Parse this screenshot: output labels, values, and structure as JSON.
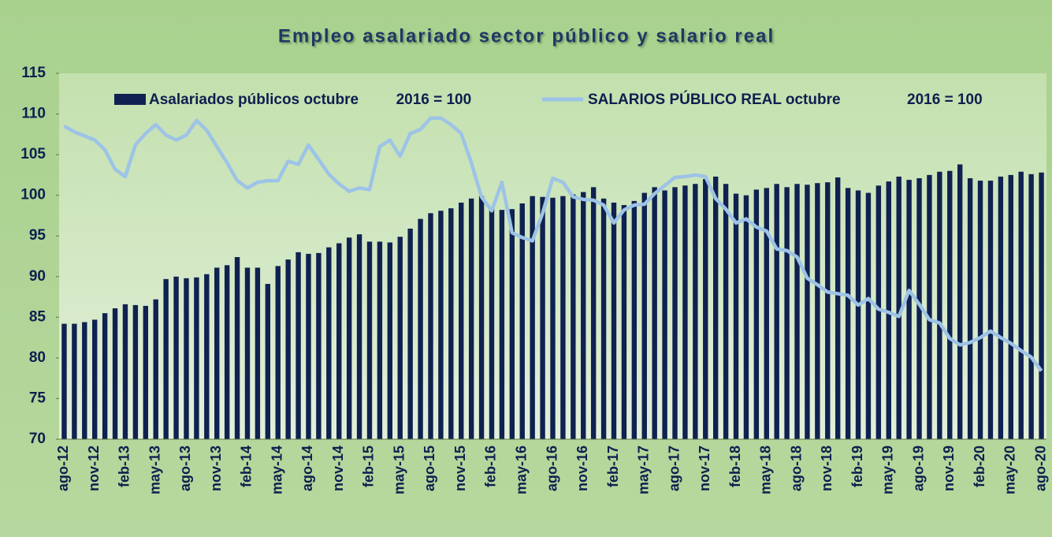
{
  "chart_data": {
    "type": "bar",
    "title": "Empleo asalariado sector público y salario real",
    "categories": [
      "ago-12",
      null,
      null,
      "nov-12",
      null,
      null,
      "feb-13",
      null,
      null,
      "may-13",
      null,
      null,
      "ago-13",
      null,
      null,
      "nov-13",
      null,
      null,
      "feb-14",
      null,
      null,
      "may-14",
      null,
      null,
      "ago-14",
      null,
      null,
      "nov-14",
      null,
      null,
      "feb-15",
      null,
      null,
      "may-15",
      null,
      null,
      "ago-15",
      null,
      null,
      "nov-15",
      null,
      null,
      "feb-16",
      null,
      null,
      "may-16",
      null,
      null,
      "ago-16",
      null,
      null,
      "nov-16",
      null,
      null,
      "feb-17",
      null,
      null,
      "may-17",
      null,
      null,
      "ago-17",
      null,
      null,
      "nov-17",
      null,
      null,
      "feb-18",
      null,
      null,
      "may-18",
      null,
      null,
      "ago-18",
      null,
      null,
      "nov-18",
      null,
      null,
      "feb-19",
      null,
      null,
      "may-19",
      null,
      null,
      "ago-19",
      null,
      null,
      "nov-19",
      null,
      null,
      "feb-20",
      null,
      null,
      "may-20",
      null,
      null,
      "ago-20"
    ],
    "series": [
      {
        "name": "Asalariados públicos octubre         2016 = 100",
        "type": "bar",
        "color": "#0f2150",
        "values": [
          84.2,
          84.2,
          84.4,
          84.7,
          85.5,
          86.1,
          86.6,
          86.5,
          86.4,
          87.2,
          89.7,
          90.0,
          89.8,
          89.9,
          90.3,
          91.1,
          91.4,
          92.4,
          91.1,
          91.1,
          89.1,
          91.3,
          92.1,
          93.0,
          92.8,
          92.9,
          93.6,
          94.1,
          94.8,
          95.2,
          94.3,
          94.3,
          94.2,
          94.9,
          95.9,
          97.1,
          97.8,
          98.1,
          98.4,
          99.1,
          99.6,
          99.9,
          98.4,
          98.2,
          98.3,
          99.0,
          99.9,
          99.8,
          99.7,
          99.9,
          100.1,
          100.4,
          101.0,
          99.6,
          99.1,
          98.8,
          99.3,
          100.3,
          101.0,
          100.6,
          101.0,
          101.2,
          101.4,
          102.0,
          102.3,
          101.4,
          100.2,
          100.0,
          100.7,
          100.9,
          101.4,
          101.0,
          101.4,
          101.3,
          101.5,
          101.6,
          102.2,
          100.9,
          100.6,
          100.3,
          101.2,
          101.7,
          102.3,
          101.9,
          102.1,
          102.5,
          102.9,
          103.0,
          103.8,
          102.1,
          101.8,
          101.8,
          102.3,
          102.5,
          102.9,
          102.6,
          102.8
        ]
      },
      {
        "name": "SALARIOS PÚBLICO REAL octubre                2016 = 100",
        "type": "line",
        "color": "#9dc3e6",
        "values": [
          108.5,
          107.8,
          107.3,
          106.8,
          105.6,
          103.2,
          102.3,
          106.2,
          107.6,
          108.7,
          107.4,
          106.8,
          107.4,
          109.2,
          108.0,
          106.0,
          104.0,
          101.8,
          100.9,
          101.6,
          101.8,
          101.8,
          104.2,
          103.8,
          106.2,
          104.4,
          102.6,
          101.4,
          100.5,
          100.9,
          100.7,
          106.0,
          106.8,
          104.8,
          107.6,
          108.1,
          109.5,
          109.5,
          108.7,
          107.6,
          104.0,
          99.8,
          98.1,
          101.6,
          95.4,
          94.8,
          94.4,
          97.8,
          102.1,
          101.6,
          99.8,
          99.5,
          99.4,
          98.8,
          96.6,
          98.2,
          98.8,
          98.9,
          100.2,
          101.2,
          102.2,
          102.3,
          102.5,
          102.3,
          99.6,
          98.3,
          96.6,
          97.1,
          96.1,
          95.6,
          93.4,
          93.2,
          92.4,
          89.8,
          89.0,
          88.1,
          87.9,
          87.7,
          86.5,
          87.3,
          86.0,
          85.6,
          85.1,
          88.3,
          86.6,
          84.7,
          84.3,
          82.4,
          81.6,
          81.9,
          82.5,
          83.3,
          82.5,
          81.8,
          80.9,
          80.1,
          78.4
        ]
      }
    ],
    "ylim": [
      70,
      115
    ],
    "yticks": [
      70,
      75,
      80,
      85,
      90,
      95,
      100,
      105,
      110,
      115
    ]
  }
}
